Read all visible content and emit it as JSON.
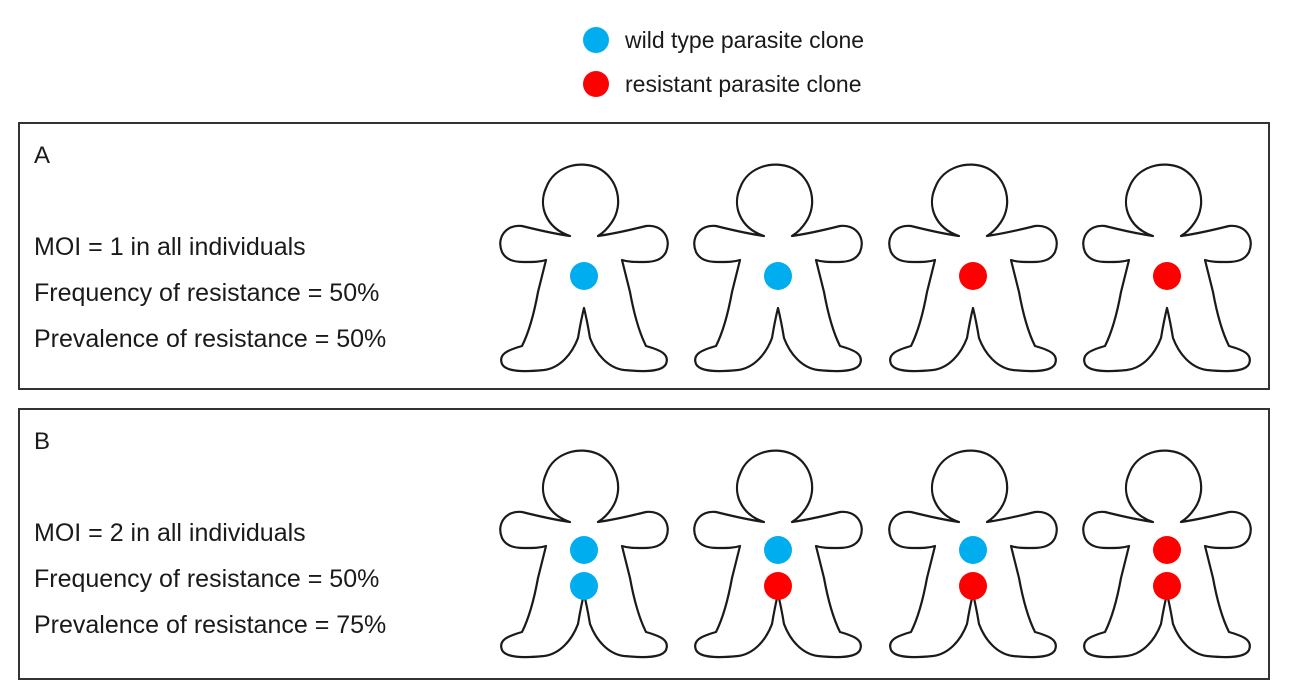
{
  "legend": {
    "items": [
      {
        "type": "wild",
        "label": "wild type parasite clone",
        "color": "#00aeef"
      },
      {
        "type": "resistant",
        "label": "resistant parasite clone",
        "color": "#ff0000"
      }
    ]
  },
  "panels": [
    {
      "letter": "A",
      "lines": [
        "MOI = 1 in all individuals",
        "Frequency of resistance = 50%",
        "Prevalence of resistance = 50%"
      ],
      "individuals": [
        [
          "wild"
        ],
        [
          "wild"
        ],
        [
          "resistant"
        ],
        [
          "resistant"
        ]
      ]
    },
    {
      "letter": "B",
      "lines": [
        "MOI = 2 in all individuals",
        "Frequency of resistance = 50%",
        "Prevalence of resistance = 75%"
      ],
      "individuals": [
        [
          "wild",
          "wild"
        ],
        [
          "wild",
          "resistant"
        ],
        [
          "wild",
          "resistant"
        ],
        [
          "resistant",
          "resistant"
        ]
      ]
    }
  ]
}
